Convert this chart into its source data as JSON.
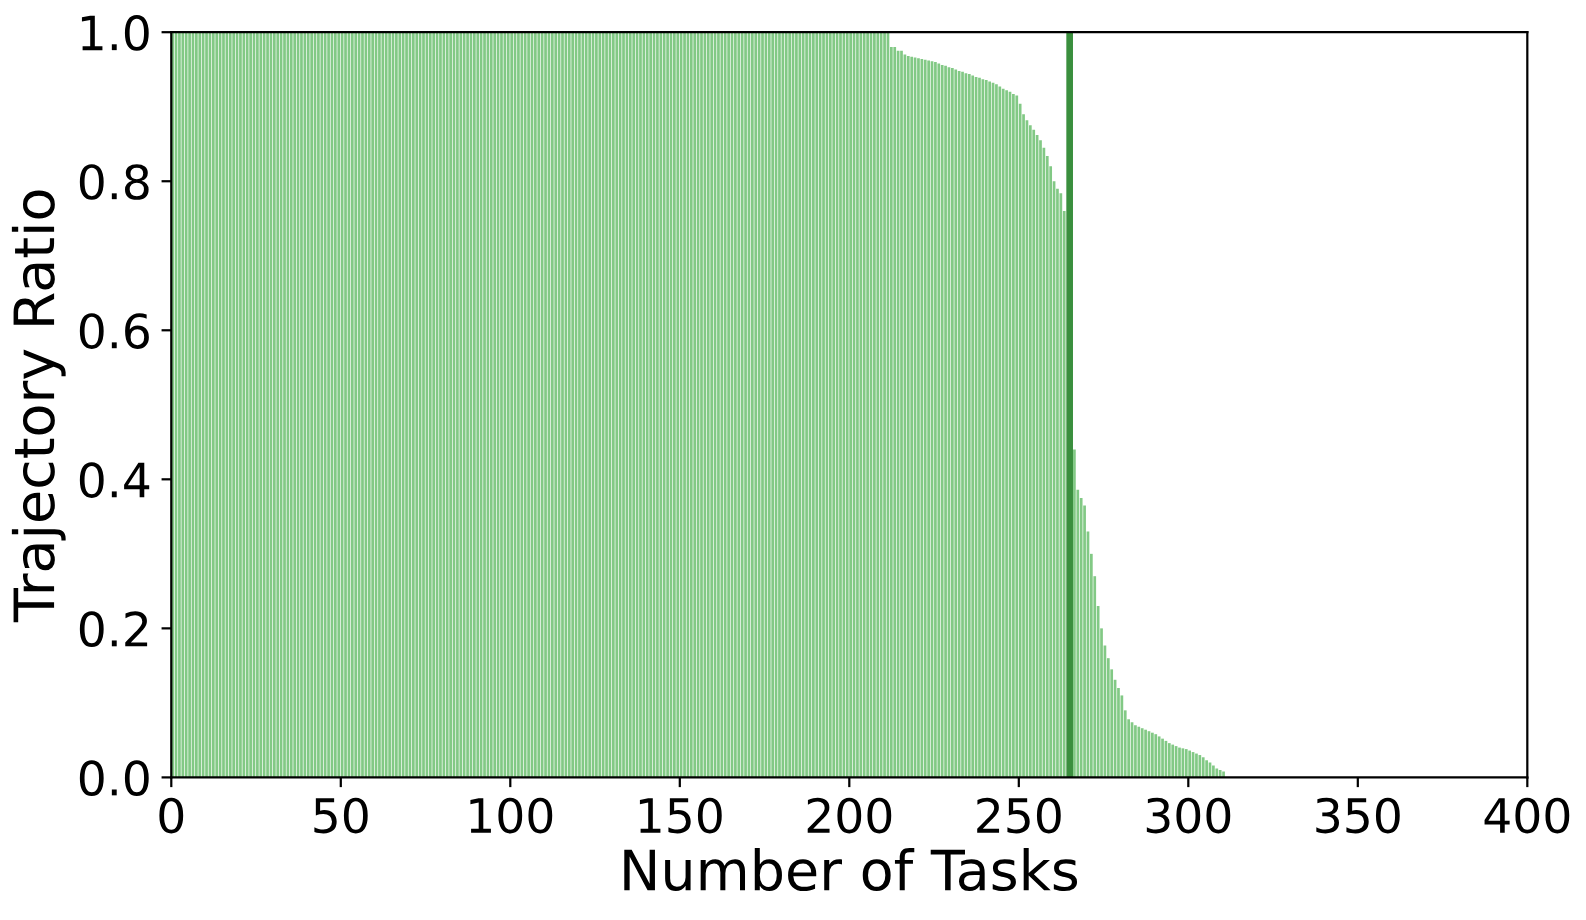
{
  "chart_data": {
    "type": "bar",
    "xlabel": "Number of Tasks",
    "ylabel": "Trajectory Ratio",
    "color": "#82c985",
    "x": [
      0,
      1,
      2,
      3,
      4,
      5,
      6,
      7,
      8,
      9,
      10,
      11,
      12,
      13,
      14,
      15,
      16,
      17,
      18,
      19,
      20,
      21,
      22,
      23,
      24,
      25,
      26,
      27,
      28,
      29,
      30,
      31,
      32,
      33,
      34,
      35,
      36,
      37,
      38,
      39,
      40,
      41,
      42,
      43,
      44,
      45,
      46,
      47,
      48,
      49,
      50,
      51,
      52,
      53,
      54,
      55,
      56,
      57,
      58,
      59,
      60,
      61,
      62,
      63,
      64,
      65,
      66,
      67,
      68,
      69,
      70,
      71,
      72,
      73,
      74,
      75,
      76,
      77,
      78,
      79,
      80,
      81,
      82,
      83,
      84,
      85,
      86,
      87,
      88,
      89,
      90,
      91,
      92,
      93,
      94,
      95,
      96,
      97,
      98,
      99,
      100,
      101,
      102,
      103,
      104,
      105,
      106,
      107,
      108,
      109,
      110,
      111,
      112,
      113,
      114,
      115,
      116,
      117,
      118,
      119,
      120,
      121,
      122,
      123,
      124,
      125,
      126,
      127,
      128,
      129,
      130,
      131,
      132,
      133,
      134,
      135,
      136,
      137,
      138,
      139,
      140,
      141,
      142,
      143,
      144,
      145,
      146,
      147,
      148,
      149,
      150,
      151,
      152,
      153,
      154,
      155,
      156,
      157,
      158,
      159,
      160,
      161,
      162,
      163,
      164,
      165,
      166,
      167,
      168,
      169,
      170,
      171,
      172,
      173,
      174,
      175,
      176,
      177,
      178,
      179,
      180,
      181,
      182,
      183,
      184,
      185,
      186,
      187,
      188,
      189,
      190,
      191,
      192,
      193,
      194,
      195,
      196,
      197,
      198,
      199,
      200,
      201,
      202,
      203,
      204,
      205,
      206,
      207,
      208,
      209,
      210,
      211,
      212,
      213,
      214,
      215,
      216,
      217,
      218,
      219,
      220,
      221,
      222,
      223,
      224,
      225,
      226,
      227,
      228,
      229,
      230,
      231,
      232,
      233,
      234,
      235,
      236,
      237,
      238,
      239,
      240,
      241,
      242,
      243,
      244,
      245,
      246,
      247,
      248,
      249,
      250,
      251,
      252,
      253,
      254,
      255,
      256,
      257,
      258,
      259,
      260,
      261,
      262,
      263,
      264,
      265,
      266,
      267,
      268,
      269,
      270,
      271,
      272,
      273,
      274,
      275,
      276,
      277,
      278,
      279,
      280,
      281,
      282,
      283,
      284,
      285,
      286,
      287,
      288,
      289,
      290,
      291,
      292,
      293,
      294,
      295,
      296,
      297,
      298,
      299,
      300,
      301,
      302,
      303,
      304,
      305,
      306,
      307,
      308,
      309,
      310
    ],
    "values": [
      1,
      1,
      1,
      1,
      1,
      1,
      1,
      1,
      1,
      1,
      1,
      1,
      1,
      1,
      1,
      1,
      1,
      1,
      1,
      1,
      1,
      1,
      1,
      1,
      1,
      1,
      1,
      1,
      1,
      1,
      1,
      1,
      1,
      1,
      1,
      1,
      1,
      1,
      1,
      1,
      1,
      1,
      1,
      1,
      1,
      1,
      1,
      1,
      1,
      1,
      1,
      1,
      1,
      1,
      1,
      1,
      1,
      1,
      1,
      1,
      1,
      1,
      1,
      1,
      1,
      1,
      1,
      1,
      1,
      1,
      1,
      1,
      1,
      1,
      1,
      1,
      1,
      1,
      1,
      1,
      1,
      1,
      1,
      1,
      1,
      1,
      1,
      1,
      1,
      1,
      1,
      1,
      1,
      1,
      1,
      1,
      1,
      1,
      1,
      1,
      1,
      1,
      1,
      1,
      1,
      1,
      1,
      1,
      1,
      1,
      1,
      1,
      1,
      1,
      1,
      1,
      1,
      1,
      1,
      1,
      1,
      1,
      1,
      1,
      1,
      1,
      1,
      1,
      1,
      1,
      1,
      1,
      1,
      1,
      1,
      1,
      1,
      1,
      1,
      1,
      1,
      1,
      1,
      1,
      1,
      1,
      1,
      1,
      1,
      1,
      1,
      1,
      1,
      1,
      1,
      1,
      1,
      1,
      1,
      1,
      1,
      1,
      1,
      1,
      1,
      1,
      1,
      1,
      1,
      1,
      1,
      1,
      1,
      1,
      1,
      1,
      1,
      1,
      1,
      1,
      1,
      1,
      1,
      1,
      1,
      1,
      1,
      1,
      1,
      1,
      1,
      1,
      1,
      1,
      1,
      1,
      1,
      1,
      1,
      1,
      1,
      1,
      1,
      1,
      1,
      1,
      1,
      1,
      1,
      1,
      1,
      1,
      0.98,
      0.98,
      0.975,
      0.975,
      0.97,
      0.968,
      0.967,
      0.966,
      0.965,
      0.964,
      0.963,
      0.962,
      0.961,
      0.96,
      0.958,
      0.956,
      0.955,
      0.953,
      0.952,
      0.95,
      0.948,
      0.947,
      0.945,
      0.944,
      0.942,
      0.94,
      0.939,
      0.937,
      0.936,
      0.934,
      0.932,
      0.93,
      0.927,
      0.924,
      0.922,
      0.92,
      0.917,
      0.915,
      0.904,
      0.89,
      0.882,
      0.875,
      0.869,
      0.862,
      0.855,
      0.845,
      0.834,
      0.82,
      0.8,
      0.79,
      0.784,
      0.76,
      null,
      null,
      0.44,
      0.386,
      0.375,
      0.365,
      0.33,
      0.3,
      0.27,
      0.23,
      0.2,
      0.177,
      0.16,
      0.145,
      0.131,
      0.12,
      0.11,
      0.09,
      0.078,
      0.074,
      0.07,
      0.068,
      0.066,
      0.064,
      0.062,
      0.06,
      0.058,
      0.055,
      0.052,
      0.049,
      0.046,
      0.044,
      0.042,
      0.04,
      0.039,
      0.038,
      0.036,
      0.034,
      0.032,
      0.03,
      0.027,
      0.023,
      0.02,
      0.016,
      0.012,
      0.01,
      0.008
    ],
    "xlim": [
      0,
      400
    ],
    "xticks": [
      0,
      50,
      100,
      150,
      200,
      250,
      300,
      350,
      400
    ],
    "ylim": [
      0,
      1
    ],
    "yticks": [
      {
        "value": 0,
        "label": "0.0"
      },
      {
        "value": 0.2,
        "label": "0.2"
      },
      {
        "value": 0.4,
        "label": "0.4"
      },
      {
        "value": 0.6,
        "label": "0.6"
      },
      {
        "value": 0.8,
        "label": "0.8"
      },
      {
        "value": 1,
        "label": "1.0"
      }
    ],
    "ref_lines": [
      {
        "axis": "x",
        "value": 265,
        "color": "#3a8f3e"
      }
    ]
  }
}
